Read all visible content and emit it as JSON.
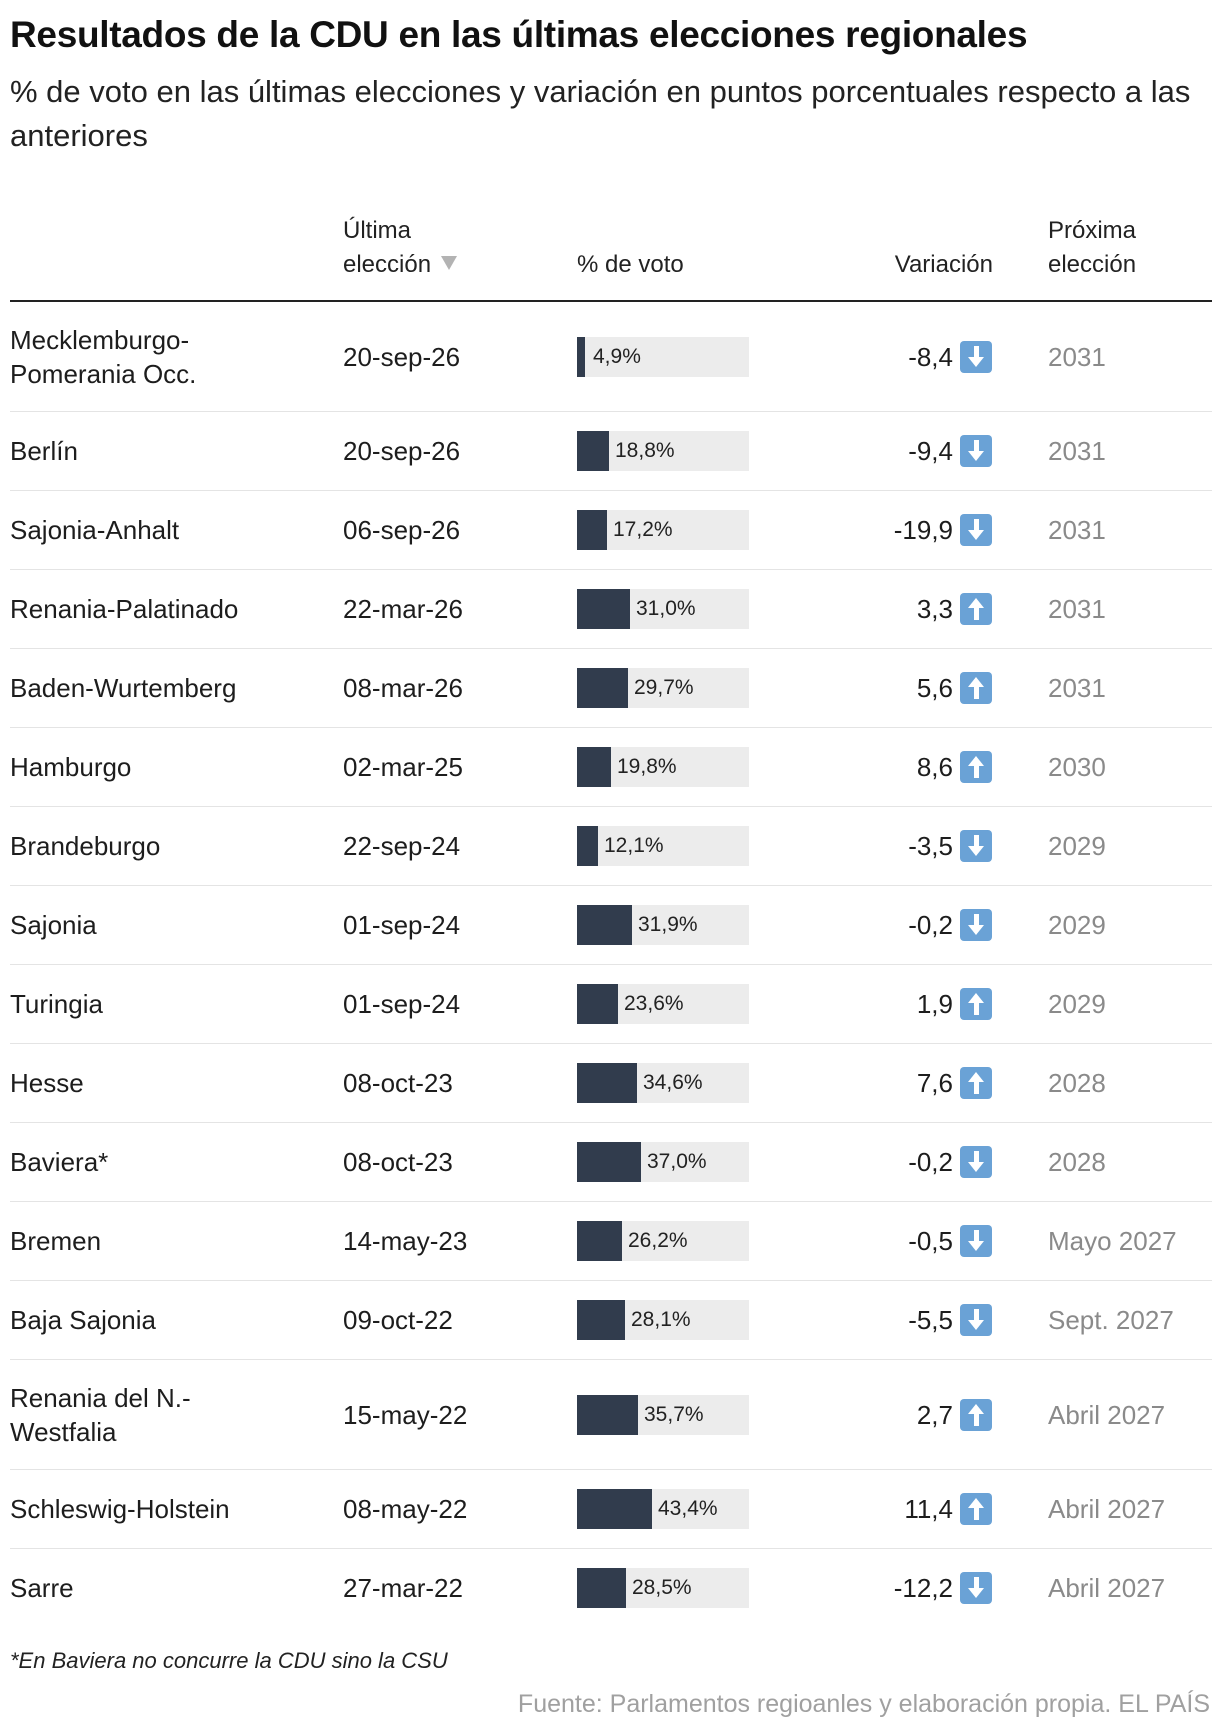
{
  "title": "Resultados de la CDU en las últimas elecciones regionales",
  "subtitle": "% de voto en las últimas elecciones y variación en puntos porcentuales respecto a las anteriores",
  "columns": {
    "state": "",
    "last_election_line1": "Última",
    "last_election_line2": "elección",
    "vote": "% de voto",
    "variation": "Variación",
    "next_election_line1": "Próxima",
    "next_election_line2": "elección"
  },
  "colors": {
    "bar": "#313c4d",
    "bar_track": "#ececec",
    "arrow_icon": "#6aa2d6"
  },
  "note": "*En Baviera no concurre la CDU sino la CSU",
  "source": "Fuente: Parlamentos regioanles y elaboración propia. EL PAÍS",
  "chart_data": {
    "type": "table",
    "bar_max": 100,
    "rows": [
      {
        "state": "Mecklemburgo-Pomerania Occ.",
        "state_l1": "Mecklemburgo-",
        "state_l2": "Pomerania Occ.",
        "date": "20-sep-26",
        "vote": 4.9,
        "vote_label": "4,9%",
        "variation": -8.4,
        "variation_label": "-8,4",
        "trend": "down",
        "next": "2031"
      },
      {
        "state": "Berlín",
        "date": "20-sep-26",
        "vote": 18.8,
        "vote_label": "18,8%",
        "variation": -9.4,
        "variation_label": "-9,4",
        "trend": "down",
        "next": "2031"
      },
      {
        "state": "Sajonia-Anhalt",
        "date": "06-sep-26",
        "vote": 17.2,
        "vote_label": "17,2%",
        "variation": -19.9,
        "variation_label": "-19,9",
        "trend": "down",
        "next": "2031"
      },
      {
        "state": "Renania-Palatinado",
        "date": "22-mar-26",
        "vote": 31.0,
        "vote_label": "31,0%",
        "variation": 3.3,
        "variation_label": "3,3",
        "trend": "up",
        "next": "2031"
      },
      {
        "state": "Baden-Wurtemberg",
        "date": "08-mar-26",
        "vote": 29.7,
        "vote_label": "29,7%",
        "variation": 5.6,
        "variation_label": "5,6",
        "trend": "up",
        "next": "2031"
      },
      {
        "state": "Hamburgo",
        "date": "02-mar-25",
        "vote": 19.8,
        "vote_label": "19,8%",
        "variation": 8.6,
        "variation_label": "8,6",
        "trend": "up",
        "next": "2030"
      },
      {
        "state": "Brandeburgo",
        "date": "22-sep-24",
        "vote": 12.1,
        "vote_label": "12,1%",
        "variation": -3.5,
        "variation_label": "-3,5",
        "trend": "down",
        "next": "2029"
      },
      {
        "state": "Sajonia",
        "date": "01-sep-24",
        "vote": 31.9,
        "vote_label": "31,9%",
        "variation": -0.2,
        "variation_label": "-0,2",
        "trend": "down",
        "next": "2029"
      },
      {
        "state": "Turingia",
        "date": "01-sep-24",
        "vote": 23.6,
        "vote_label": "23,6%",
        "variation": 1.9,
        "variation_label": "1,9",
        "trend": "up",
        "next": "2029"
      },
      {
        "state": "Hesse",
        "date": "08-oct-23",
        "vote": 34.6,
        "vote_label": "34,6%",
        "variation": 7.6,
        "variation_label": "7,6",
        "trend": "up",
        "next": "2028"
      },
      {
        "state": "Baviera*",
        "date": "08-oct-23",
        "vote": 37.0,
        "vote_label": "37,0%",
        "variation": -0.2,
        "variation_label": "-0,2",
        "trend": "down",
        "next": "2028"
      },
      {
        "state": "Bremen",
        "date": "14-may-23",
        "vote": 26.2,
        "vote_label": "26,2%",
        "variation": -0.5,
        "variation_label": "-0,5",
        "trend": "down",
        "next": "Mayo 2027"
      },
      {
        "state": "Baja Sajonia",
        "date": "09-oct-22",
        "vote": 28.1,
        "vote_label": "28,1%",
        "variation": -5.5,
        "variation_label": "-5,5",
        "trend": "down",
        "next": "Sept. 2027"
      },
      {
        "state": "Renania del N.-Westfalia",
        "state_l1": "Renania del N.-",
        "state_l2": "Westfalia",
        "date": "15-may-22",
        "vote": 35.7,
        "vote_label": "35,7%",
        "variation": 2.7,
        "variation_label": "2,7",
        "trend": "up",
        "next": "Abril 2027"
      },
      {
        "state": "Schleswig-Holstein",
        "date": "08-may-22",
        "vote": 43.4,
        "vote_label": "43,4%",
        "variation": 11.4,
        "variation_label": "11,4",
        "trend": "up",
        "next": "Abril 2027"
      },
      {
        "state": "Sarre",
        "date": "27-mar-22",
        "vote": 28.5,
        "vote_label": "28,5%",
        "variation": -12.2,
        "variation_label": "-12,2",
        "trend": "down",
        "next": "Abril 2027"
      }
    ]
  }
}
